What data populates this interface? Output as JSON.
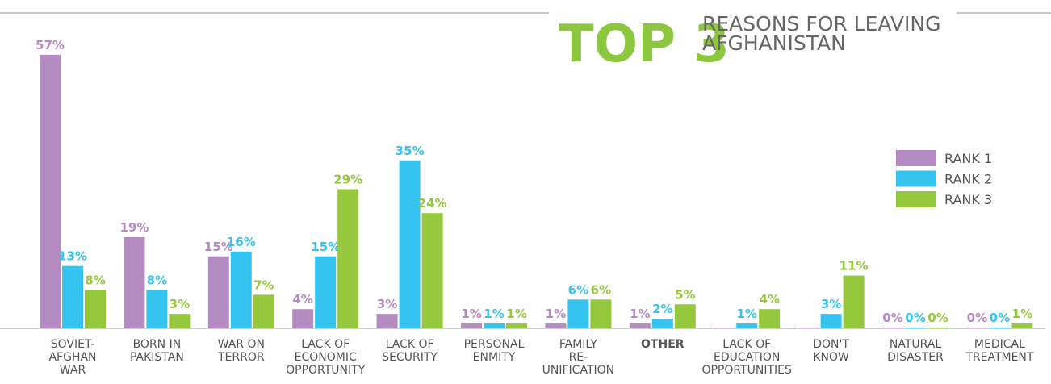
{
  "chart_data": {
    "type": "bar",
    "title_highlight": "TOP 3",
    "title_lines": [
      "REASONS FOR LEAVING",
      "AFGHANISTAN"
    ],
    "categories": [
      [
        "SOVIET-",
        "AFGHAN",
        "WAR"
      ],
      [
        "BORN IN",
        "PAKISTAN"
      ],
      [
        "WAR ON",
        "TERROR"
      ],
      [
        "LACK OF",
        "ECONOMIC",
        "OPPORTUNITY"
      ],
      [
        "LACK OF",
        "SECURITY"
      ],
      [
        "PERSONAL",
        "ENMITY"
      ],
      [
        "FAMILY",
        "RE-",
        "UNIFICATION"
      ],
      [
        "OTHER"
      ],
      [
        "LACK OF",
        "EDUCATION",
        "OPPORTUNITIES"
      ],
      [
        "DON'T",
        "KNOW"
      ],
      [
        "NATURAL",
        "DISASTER"
      ],
      [
        "MEDICAL",
        "TREATMENT"
      ]
    ],
    "series": [
      {
        "name": "RANK 1",
        "color": "#b48cc2",
        "values": [
          57,
          19,
          15,
          4,
          3,
          1,
          1,
          1,
          0,
          0,
          0,
          0
        ],
        "value_labels": [
          "57%",
          "19%",
          "15%",
          "4%",
          "3%",
          "1%",
          "1%",
          "1%",
          null,
          null,
          "0%",
          "0%"
        ]
      },
      {
        "name": "RANK 2",
        "color": "#35c4ef",
        "values": [
          13,
          8,
          16,
          15,
          35,
          1,
          6,
          2,
          1,
          3,
          0,
          0
        ],
        "value_labels": [
          "13%",
          "8%",
          "16%",
          "15%",
          "35%",
          "1%",
          "6%",
          "2%",
          "1%",
          "3%",
          "0%",
          "0%"
        ]
      },
      {
        "name": "RANK 3",
        "color": "#95c83d",
        "values": [
          8,
          3,
          7,
          29,
          24,
          1,
          6,
          5,
          4,
          11,
          0,
          1
        ],
        "value_labels": [
          "8%",
          "3%",
          "7%",
          "29%",
          "24%",
          "1%",
          "6%",
          "5%",
          "4%",
          "11%",
          "0%",
          "1%"
        ]
      }
    ]
  }
}
